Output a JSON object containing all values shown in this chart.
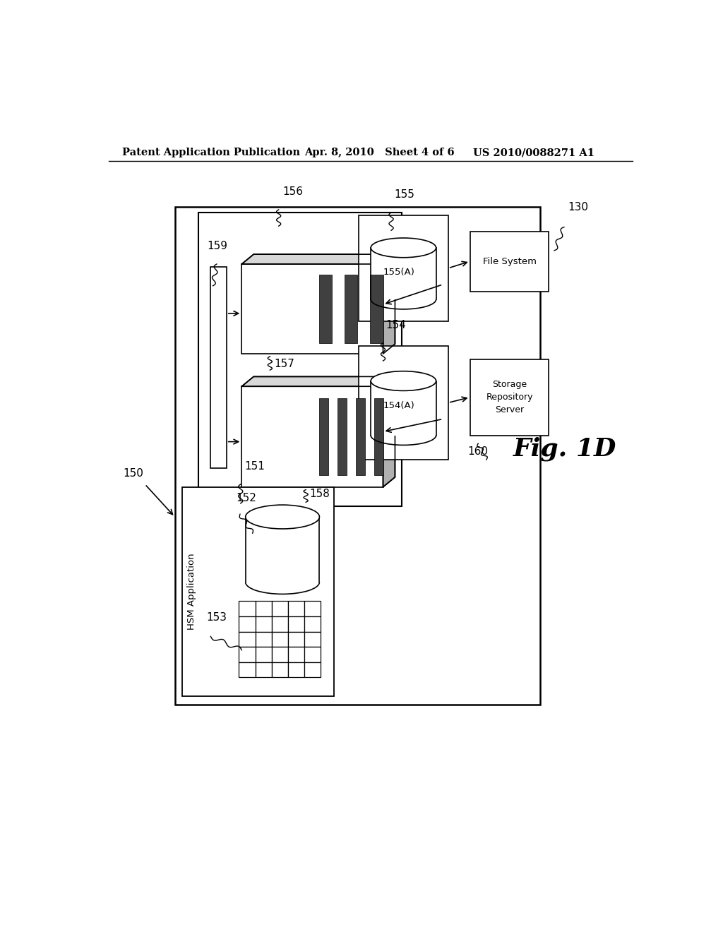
{
  "bg_color": "#ffffff",
  "header_left": "Patent Application Publication",
  "header_mid": "Apr. 8, 2010   Sheet 4 of 6",
  "header_right": "US 2010/0088271 A1",
  "fig_label": "Fig. 1D",
  "label_150": "150",
  "label_151": "151",
  "label_152": "152",
  "label_153": "153",
  "label_154": "154",
  "label_155": "155",
  "label_156": "156",
  "label_157": "157",
  "label_158": "158",
  "label_159": "159",
  "label_160": "160",
  "label_130": "130",
  "text_hsm_app": "HSM Application",
  "text_file_system": "File System",
  "text_storage": "Storage\nRepository\nServer",
  "text_154A": "154(A)",
  "text_155A": "155(A)"
}
